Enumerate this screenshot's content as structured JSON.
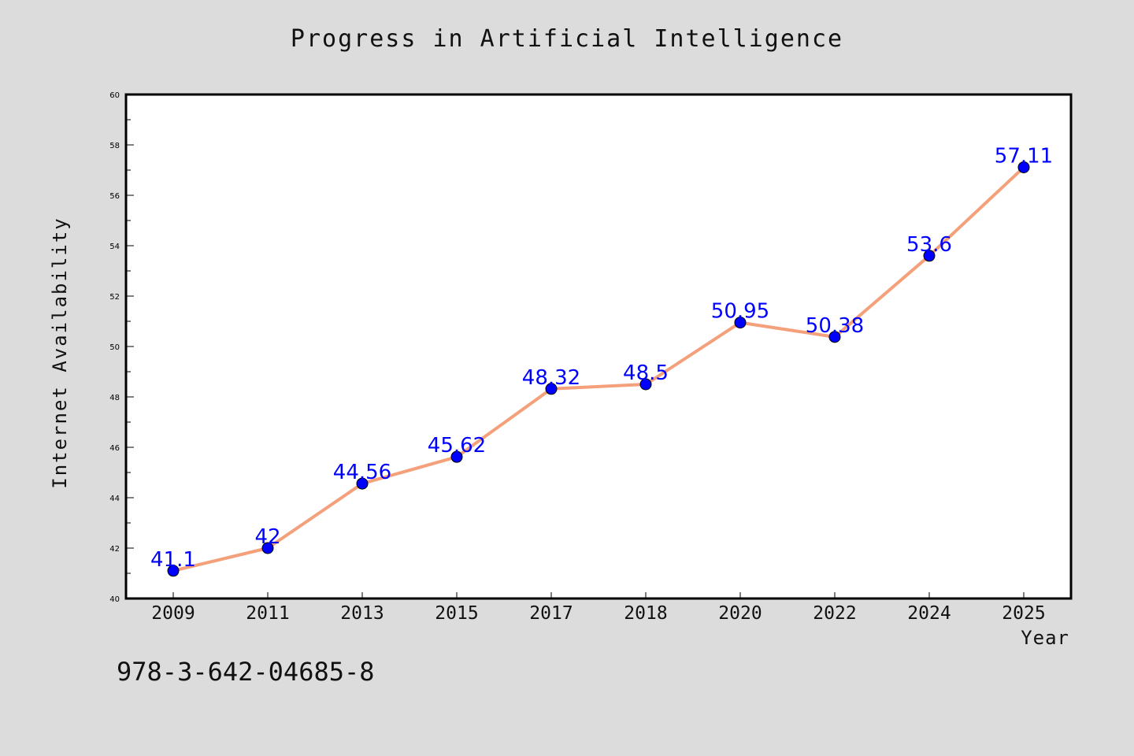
{
  "chart_data": {
    "type": "line",
    "title": "Progress in Artificial Intelligence",
    "xlabel": "Year",
    "ylabel": "Internet Availability",
    "categories": [
      "2009",
      "2011",
      "2013",
      "2015",
      "2017",
      "2018",
      "2020",
      "2022",
      "2024",
      "2025"
    ],
    "series": [
      {
        "values": [
          41.1,
          42,
          44.56,
          45.62,
          48.32,
          48.5,
          50.95,
          50.38,
          53.6,
          57.11
        ],
        "labels": [
          "41.1",
          "42",
          "44.56",
          "45.62",
          "48.32",
          "48.5",
          "50.95",
          "50.38",
          "53.6",
          "57.11"
        ],
        "line_color": "#f4a07a",
        "marker_color": "#0000ff",
        "label_color": "#0000ff"
      }
    ],
    "ylim": [
      40,
      60
    ],
    "yticks": [
      "40",
      "42",
      "44",
      "46",
      "48",
      "50",
      "52",
      "54",
      "56",
      "58",
      "60"
    ],
    "grid": false,
    "legend": "none"
  },
  "footer": {
    "isbn": "978-3-642-04685-8"
  },
  "colors": {
    "background": "#dcdcdc",
    "plot_background": "#ffffff",
    "axis": "#000000"
  }
}
